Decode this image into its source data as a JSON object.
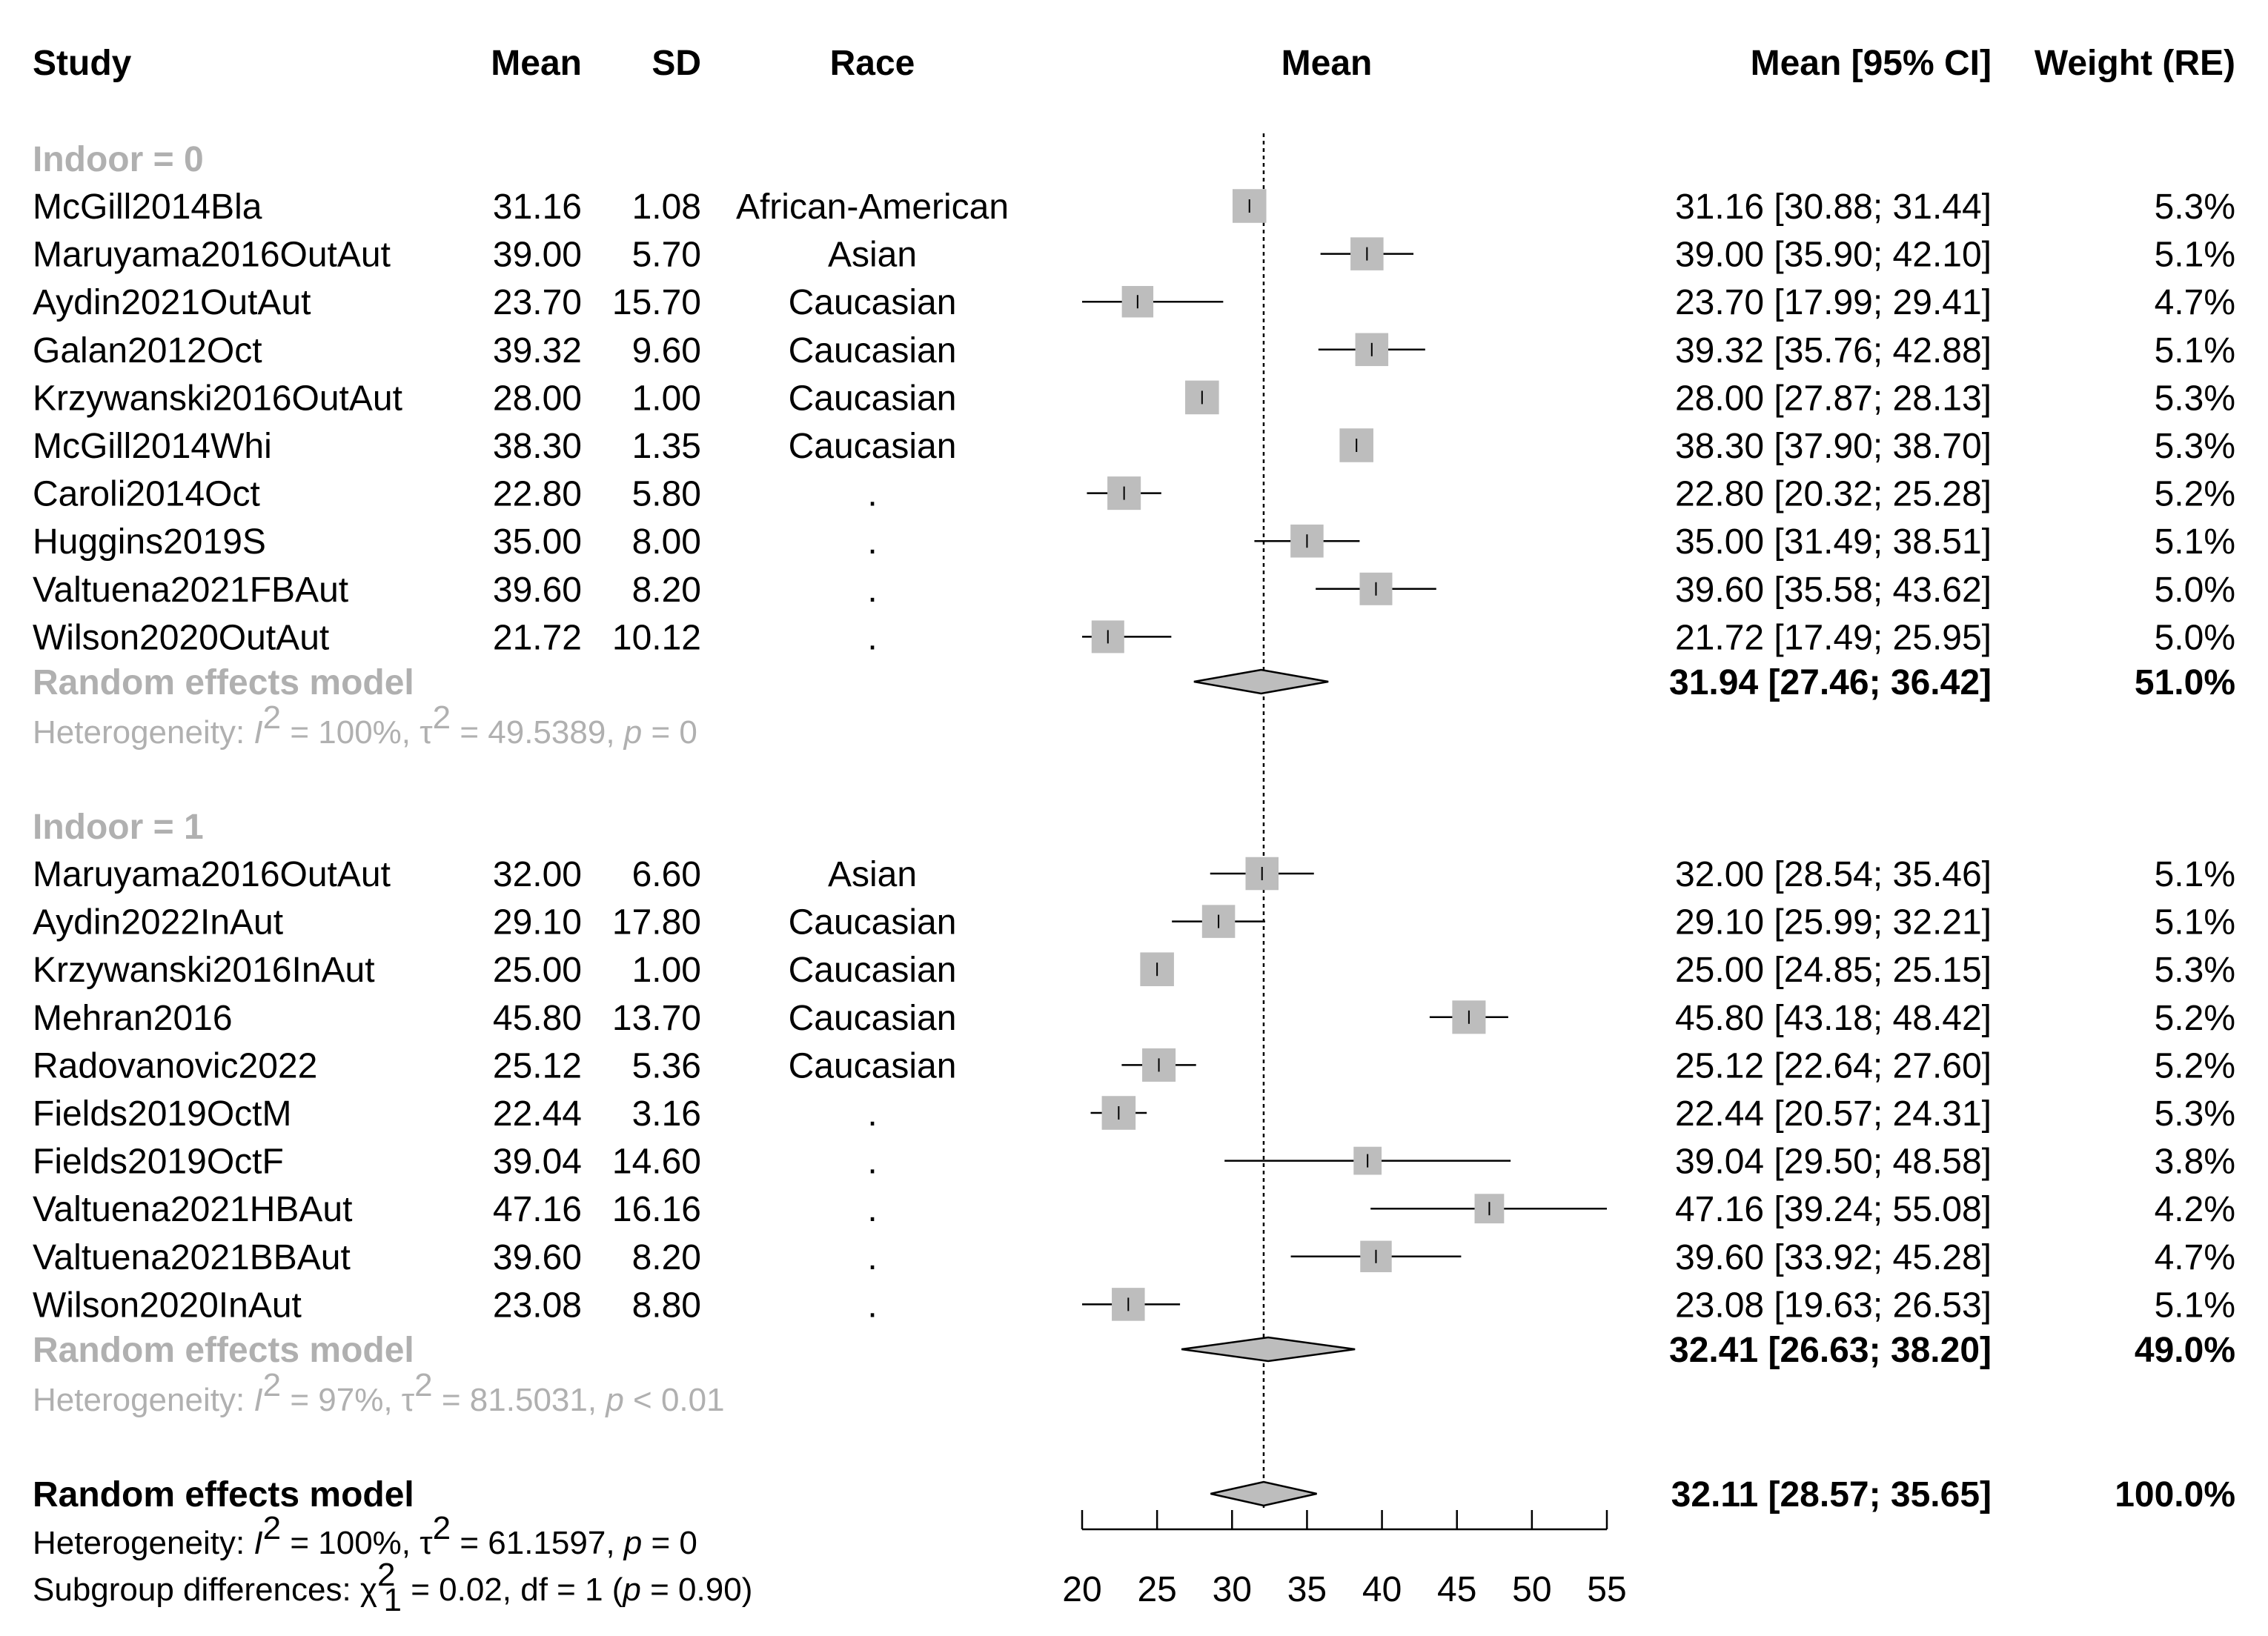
{
  "headers": {
    "study": "Study",
    "mean": "Mean",
    "sd": "SD",
    "race": "Race",
    "plot": "Mean",
    "ci": "Mean [95% CI]",
    "weight": "Weight (RE)"
  },
  "groups": [
    {
      "title": "Indoor = 0",
      "rows": [
        {
          "study": "McGill2014Bla",
          "mean": "31.16",
          "sd": "1.08",
          "race": "African-American",
          "ci": "31.16 [30.88; 31.44]",
          "weight": "5.3%"
        },
        {
          "study": "Maruyama2016OutAut",
          "mean": "39.00",
          "sd": "5.70",
          "race": "Asian",
          "ci": "39.00 [35.90; 42.10]",
          "weight": "5.1%"
        },
        {
          "study": "Aydin2021OutAut",
          "mean": "23.70",
          "sd": "15.70",
          "race": "Caucasian",
          "ci": "23.70 [17.99; 29.41]",
          "weight": "4.7%"
        },
        {
          "study": "Galan2012Oct",
          "mean": "39.32",
          "sd": "9.60",
          "race": "Caucasian",
          "ci": "39.32 [35.76; 42.88]",
          "weight": "5.1%"
        },
        {
          "study": "Krzywanski2016OutAut",
          "mean": "28.00",
          "sd": "1.00",
          "race": "Caucasian",
          "ci": "28.00 [27.87; 28.13]",
          "weight": "5.3%"
        },
        {
          "study": "McGill2014Whi",
          "mean": "38.30",
          "sd": "1.35",
          "race": "Caucasian",
          "ci": "38.30 [37.90; 38.70]",
          "weight": "5.3%"
        },
        {
          "study": "Caroli2014Oct",
          "mean": "22.80",
          "sd": "5.80",
          "race": ".",
          "ci": "22.80 [20.32; 25.28]",
          "weight": "5.2%"
        },
        {
          "study": "Huggins2019S",
          "mean": "35.00",
          "sd": "8.00",
          "race": ".",
          "ci": "35.00 [31.49; 38.51]",
          "weight": "5.1%"
        },
        {
          "study": "Valtuena2021FBAut",
          "mean": "39.60",
          "sd": "8.20",
          "race": ".",
          "ci": "39.60 [35.58; 43.62]",
          "weight": "5.0%"
        },
        {
          "study": "Wilson2020OutAut",
          "mean": "21.72",
          "sd": "10.12",
          "race": ".",
          "ci": "21.72 [17.49; 25.95]",
          "weight": "5.0%"
        }
      ],
      "model": {
        "label": "Random effects model",
        "ci": "31.94 [27.46; 36.42]",
        "weight": "51.0%"
      },
      "het": {
        "prefix": "Heterogeneity: ",
        "I": "I",
        "two": "2",
        "i2": " = 100%, τ",
        "tau2": " = 49.5389, ",
        "p": "p",
        "pval": " = 0"
      }
    },
    {
      "title": "Indoor = 1",
      "rows": [
        {
          "study": "Maruyama2016OutAut",
          "mean": "32.00",
          "sd": "6.60",
          "race": "Asian",
          "ci": "32.00 [28.54; 35.46]",
          "weight": "5.1%"
        },
        {
          "study": "Aydin2022InAut",
          "mean": "29.10",
          "sd": "17.80",
          "race": "Caucasian",
          "ci": "29.10 [25.99; 32.21]",
          "weight": "5.1%"
        },
        {
          "study": "Krzywanski2016InAut",
          "mean": "25.00",
          "sd": "1.00",
          "race": "Caucasian",
          "ci": "25.00 [24.85; 25.15]",
          "weight": "5.3%"
        },
        {
          "study": "Mehran2016",
          "mean": "45.80",
          "sd": "13.70",
          "race": "Caucasian",
          "ci": "45.80 [43.18; 48.42]",
          "weight": "5.2%"
        },
        {
          "study": "Radovanovic2022",
          "mean": "25.12",
          "sd": "5.36",
          "race": "Caucasian",
          "ci": "25.12 [22.64; 27.60]",
          "weight": "5.2%"
        },
        {
          "study": "Fields2019OctM",
          "mean": "22.44",
          "sd": "3.16",
          "race": ".",
          "ci": "22.44 [20.57; 24.31]",
          "weight": "5.3%"
        },
        {
          "study": "Fields2019OctF",
          "mean": "39.04",
          "sd": "14.60",
          "race": ".",
          "ci": "39.04 [29.50; 48.58]",
          "weight": "3.8%"
        },
        {
          "study": "Valtuena2021HBAut",
          "mean": "47.16",
          "sd": "16.16",
          "race": ".",
          "ci": "47.16 [39.24; 55.08]",
          "weight": "4.2%"
        },
        {
          "study": "Valtuena2021BBAut",
          "mean": "39.60",
          "sd": "8.20",
          "race": ".",
          "ci": "39.60 [33.92; 45.28]",
          "weight": "4.7%"
        },
        {
          "study": "Wilson2020InAut",
          "mean": "23.08",
          "sd": "8.80",
          "race": ".",
          "ci": "23.08 [19.63; 26.53]",
          "weight": "5.1%"
        }
      ],
      "model": {
        "label": "Random effects model",
        "ci": "32.41 [26.63; 38.20]",
        "weight": "49.0%"
      },
      "het": {
        "prefix": "Heterogeneity: ",
        "I": "I",
        "two": "2",
        "i2": " = 97%, τ",
        "tau2": " = 81.5031, ",
        "p": "p",
        "pval": " < 0.01"
      }
    }
  ],
  "overall": {
    "label": "Random effects model",
    "ci": "32.11 [28.57; 35.65]",
    "weight": "100.0%",
    "het": {
      "prefix": "Heterogeneity: ",
      "I": "I",
      "two": "2",
      "i2": " = 100%, τ",
      "tau2": " = 61.1597, ",
      "p": "p",
      "pval": " = 0"
    },
    "subgroup": {
      "prefix": "Subgroup differences: χ",
      "two": "2",
      "one": "1",
      "stat": " = 0.02, df = 1 (",
      "p": "p",
      "pval": " = 0.90)"
    }
  },
  "axis": {
    "ticks": [
      "20",
      "25",
      "30",
      "35",
      "40",
      "45",
      "50",
      "55"
    ],
    "tick_values": [
      20,
      25,
      30,
      35,
      40,
      45,
      50,
      55
    ],
    "range": [
      20,
      55
    ]
  },
  "colors": {
    "box": "#bdbdbd",
    "diamond": "#bdbdbd",
    "grey_text": "#b0b0b0",
    "line": "#000000"
  },
  "chart_data": {
    "type": "forest",
    "title": "",
    "xlabel": "Mean",
    "xlim": [
      20,
      55
    ],
    "reference_line": 32.11,
    "studies": [
      {
        "group": "Indoor = 0",
        "name": "McGill2014Bla",
        "mean": 31.16,
        "lower": 30.88,
        "upper": 31.44,
        "weight": 5.3
      },
      {
        "group": "Indoor = 0",
        "name": "Maruyama2016OutAut",
        "mean": 39.0,
        "lower": 35.9,
        "upper": 42.1,
        "weight": 5.1
      },
      {
        "group": "Indoor = 0",
        "name": "Aydin2021OutAut",
        "mean": 23.7,
        "lower": 17.99,
        "upper": 29.41,
        "weight": 4.7
      },
      {
        "group": "Indoor = 0",
        "name": "Galan2012Oct",
        "mean": 39.32,
        "lower": 35.76,
        "upper": 42.88,
        "weight": 5.1
      },
      {
        "group": "Indoor = 0",
        "name": "Krzywanski2016OutAut",
        "mean": 28.0,
        "lower": 27.87,
        "upper": 28.13,
        "weight": 5.3
      },
      {
        "group": "Indoor = 0",
        "name": "McGill2014Whi",
        "mean": 38.3,
        "lower": 37.9,
        "upper": 38.7,
        "weight": 5.3
      },
      {
        "group": "Indoor = 0",
        "name": "Caroli2014Oct",
        "mean": 22.8,
        "lower": 20.32,
        "upper": 25.28,
        "weight": 5.2
      },
      {
        "group": "Indoor = 0",
        "name": "Huggins2019S",
        "mean": 35.0,
        "lower": 31.49,
        "upper": 38.51,
        "weight": 5.1
      },
      {
        "group": "Indoor = 0",
        "name": "Valtuena2021FBAut",
        "mean": 39.6,
        "lower": 35.58,
        "upper": 43.62,
        "weight": 5.0
      },
      {
        "group": "Indoor = 0",
        "name": "Wilson2020OutAut",
        "mean": 21.72,
        "lower": 17.49,
        "upper": 25.95,
        "weight": 5.0
      },
      {
        "group": "Indoor = 1",
        "name": "Maruyama2016OutAut",
        "mean": 32.0,
        "lower": 28.54,
        "upper": 35.46,
        "weight": 5.1
      },
      {
        "group": "Indoor = 1",
        "name": "Aydin2022InAut",
        "mean": 29.1,
        "lower": 25.99,
        "upper": 32.21,
        "weight": 5.1
      },
      {
        "group": "Indoor = 1",
        "name": "Krzywanski2016InAut",
        "mean": 25.0,
        "lower": 24.85,
        "upper": 25.15,
        "weight": 5.3
      },
      {
        "group": "Indoor = 1",
        "name": "Mehran2016",
        "mean": 45.8,
        "lower": 43.18,
        "upper": 48.42,
        "weight": 5.2
      },
      {
        "group": "Indoor = 1",
        "name": "Radovanovic2022",
        "mean": 25.12,
        "lower": 22.64,
        "upper": 27.6,
        "weight": 5.2
      },
      {
        "group": "Indoor = 1",
        "name": "Fields2019OctM",
        "mean": 22.44,
        "lower": 20.57,
        "upper": 24.31,
        "weight": 5.3
      },
      {
        "group": "Indoor = 1",
        "name": "Fields2019OctF",
        "mean": 39.04,
        "lower": 29.5,
        "upper": 48.58,
        "weight": 3.8
      },
      {
        "group": "Indoor = 1",
        "name": "Valtuena2021HBAut",
        "mean": 47.16,
        "lower": 39.24,
        "upper": 55.08,
        "weight": 4.2
      },
      {
        "group": "Indoor = 1",
        "name": "Valtuena2021BBAut",
        "mean": 39.6,
        "lower": 33.92,
        "upper": 45.28,
        "weight": 4.7
      },
      {
        "group": "Indoor = 1",
        "name": "Wilson2020InAut",
        "mean": 23.08,
        "lower": 19.63,
        "upper": 26.53,
        "weight": 5.1
      }
    ],
    "subgroup_models": [
      {
        "group": "Indoor = 0",
        "mean": 31.94,
        "lower": 27.46,
        "upper": 36.42,
        "weight": 51.0
      },
      {
        "group": "Indoor = 1",
        "mean": 32.41,
        "lower": 26.63,
        "upper": 38.2,
        "weight": 49.0
      }
    ],
    "overall_model": {
      "mean": 32.11,
      "lower": 28.57,
      "upper": 35.65,
      "weight": 100.0
    }
  }
}
